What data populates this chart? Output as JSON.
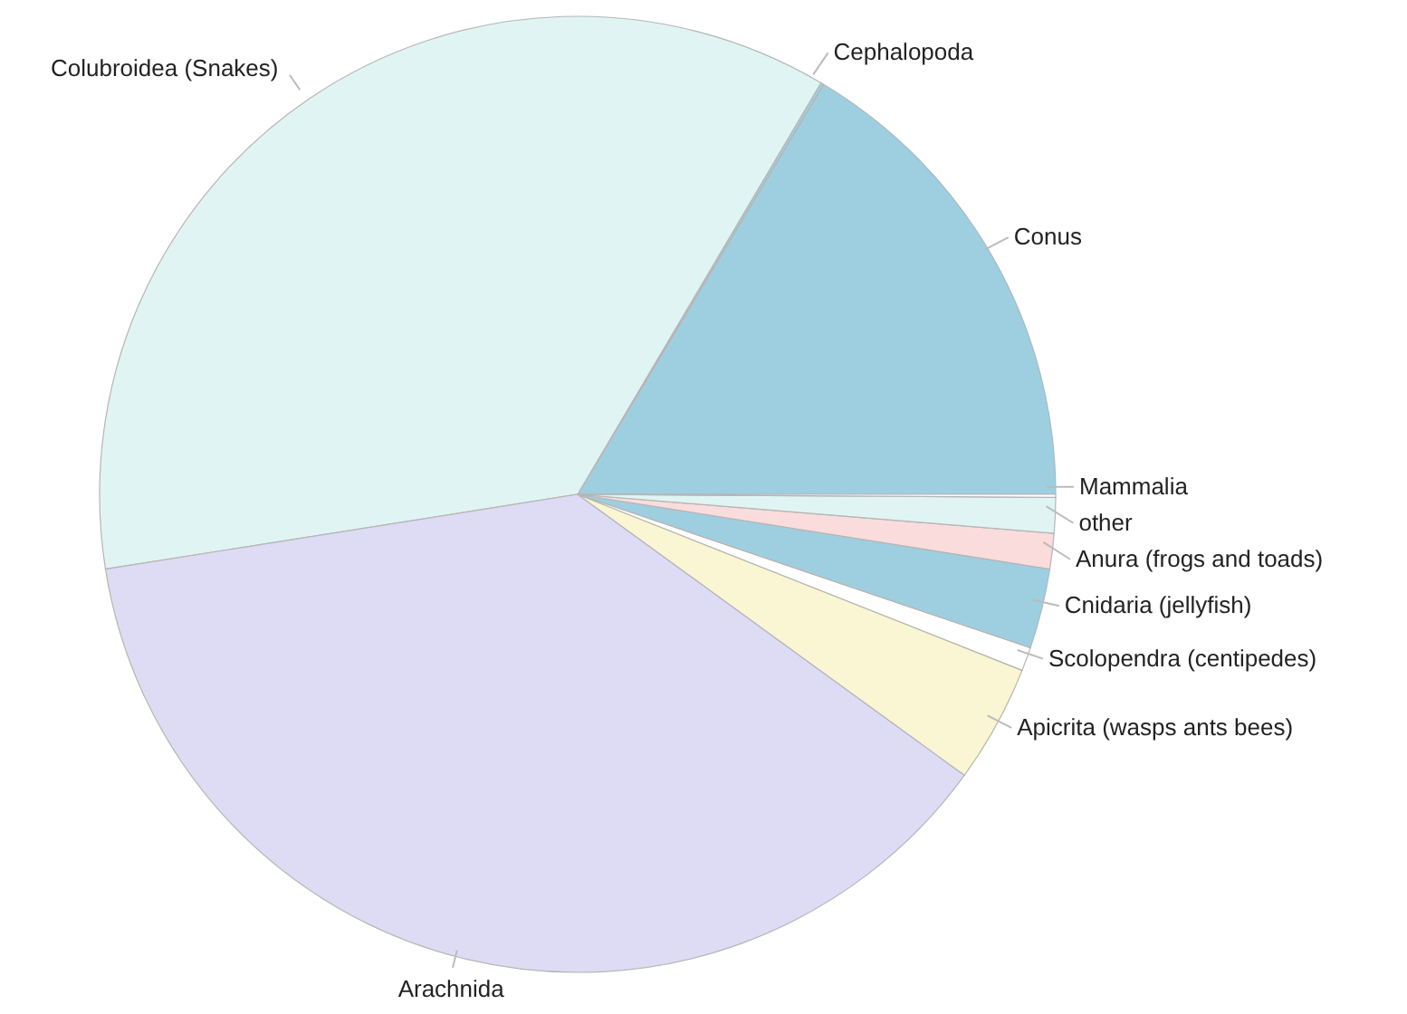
{
  "chart_data": {
    "type": "pie",
    "categories": [
      "Conus",
      "Cephalopoda",
      "Colubroidea (Snakes)",
      "Arachnida",
      "Apicrita (wasps ants bees)",
      "Scolopendra (centipedes)",
      "Cnidaria (jellyfish)",
      "Anura (frogs and toads)",
      "other",
      "Mammalia"
    ],
    "values": [
      16.4,
      0.1,
      36.0,
      37.5,
      4.0,
      0.8,
      2.7,
      1.2,
      1.2,
      0.1
    ],
    "colors": [
      "#9ecfe0",
      "#9ecfe0",
      "#e0f5f3",
      "#dedcf4",
      "#faf5d2",
      "#ffffff",
      "#9ecfe0",
      "#fadcdc",
      "#e0f5f3",
      "#ffffff"
    ]
  }
}
